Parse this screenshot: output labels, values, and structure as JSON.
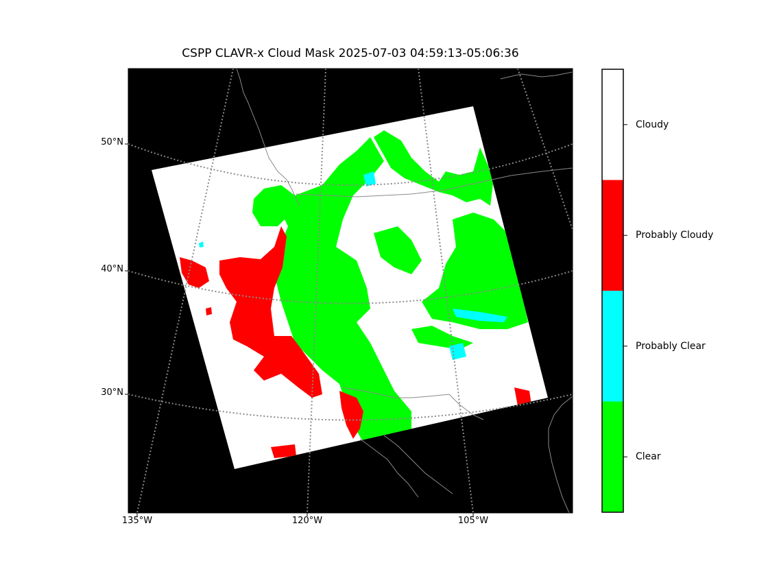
{
  "title": "CSPP CLAVR-x Cloud Mask 2025-07-03 04:59:13-05:06:36",
  "map": {
    "background_color": "#000000",
    "graticule_color": "#8a8a8a",
    "coastline_color": "#8a8a8a",
    "lat_labels": [
      "50°N",
      "40°N",
      "30°N"
    ],
    "lon_labels": [
      "135°W",
      "120°W",
      "105°W"
    ]
  },
  "legend": {
    "categories": [
      {
        "label": "Cloudy",
        "color": "#ffffff"
      },
      {
        "label": "Probably Cloudy",
        "color": "#ff0000"
      },
      {
        "label": "Probably Clear",
        "color": "#00ffff"
      },
      {
        "label": "Clear",
        "color": "#00ff00"
      }
    ]
  }
}
